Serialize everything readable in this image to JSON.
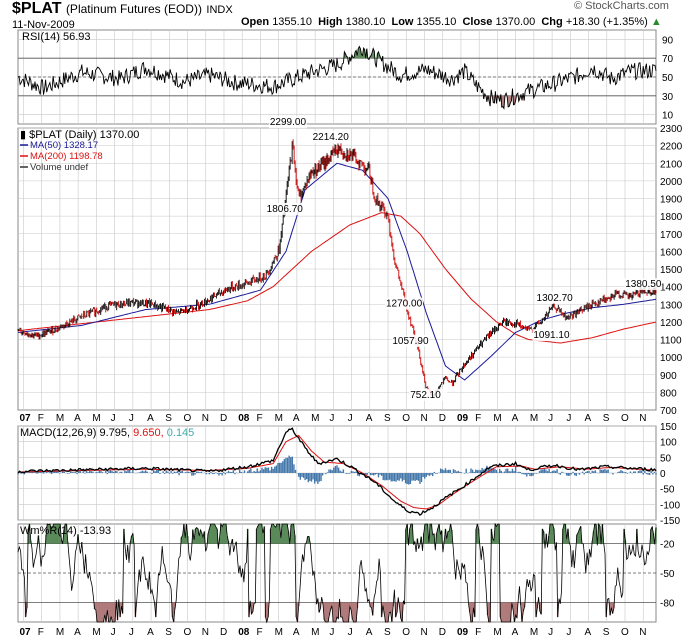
{
  "header": {
    "symbol": "$PLAT",
    "name": "(Platinum Futures (EOD))",
    "exchange": "INDX",
    "date": "11-Nov-2009",
    "open_label": "Open",
    "open": "1355.10",
    "high_label": "High",
    "high": "1380.10",
    "low_label": "Low",
    "low": "1355.10",
    "close_label": "Close",
    "close": "1370.00",
    "chg_label": "Chg",
    "chg": "+18.30 (+1.35%)",
    "watermark": "© StockCharts.com"
  },
  "colors": {
    "price": "#000000",
    "up": "#000000",
    "down": "#cc0000",
    "ma50": "#1a1a99",
    "ma200": "#dd1111",
    "macd_hist": "#4477aa",
    "signal": "#dd1111",
    "overbought_fill": "#5a8a5a",
    "oversold_fill": "#b07a7a",
    "grid": "#c8c8c8"
  },
  "chart_data": [
    {
      "panel": "rsi",
      "type": "line",
      "title": "RSI(14) 56.93",
      "ylim": [
        0,
        100
      ],
      "yticks": [
        10,
        30,
        50,
        70,
        90
      ],
      "reference_lines": [
        30,
        50,
        70
      ],
      "keypoints": [
        [
          0,
          50
        ],
        [
          4,
          38
        ],
        [
          10,
          55
        ],
        [
          16,
          48
        ],
        [
          20,
          60
        ],
        [
          26,
          45
        ],
        [
          30,
          52
        ],
        [
          34,
          44
        ],
        [
          40,
          40
        ],
        [
          46,
          55
        ],
        [
          50,
          63
        ],
        [
          52,
          72
        ],
        [
          54,
          82
        ],
        [
          56,
          70
        ],
        [
          60,
          52
        ],
        [
          64,
          58
        ],
        [
          68,
          48
        ],
        [
          70,
          56
        ],
        [
          72,
          40
        ],
        [
          74,
          28
        ],
        [
          76,
          25
        ],
        [
          80,
          35
        ],
        [
          84,
          43
        ],
        [
          88,
          52
        ],
        [
          90,
          60
        ],
        [
          93,
          48
        ],
        [
          96,
          56
        ],
        [
          100,
          57
        ]
      ]
    },
    {
      "panel": "price",
      "type": "candlestick",
      "title": "$PLAT (Daily) 1370.00",
      "legend": [
        "MA(50) 1328.17",
        "MA(200) 1198.78",
        "Volume undef"
      ],
      "ylim": [
        700,
        2300
      ],
      "yticks": [
        800,
        900,
        1000,
        1100,
        1200,
        1300,
        1400,
        1500,
        1600,
        1700,
        1800,
        1900,
        2000,
        2100,
        2200,
        2300
      ],
      "ytick_labels": [
        "800",
        "900",
        "1000",
        "1100",
        "1200",
        "1300",
        "1400",
        "1500",
        "1600",
        "1700",
        "1800",
        "1900",
        "2000",
        "2100",
        "2200",
        "2300"
      ],
      "extra_ytick_labels": [
        {
          "v": 700,
          "label": "700"
        }
      ],
      "annotations": [
        {
          "x": 42.3,
          "y": 2299,
          "label": "2299.00"
        },
        {
          "x": 49.0,
          "y": 2214.2,
          "label": "2214.20"
        },
        {
          "x": 41.8,
          "y": 1806.7,
          "label": "1806.70"
        },
        {
          "x": 60.5,
          "y": 1270,
          "label": "1270.00"
        },
        {
          "x": 61.5,
          "y": 1057.9,
          "label": "1057.90"
        },
        {
          "x": 64.3,
          "y": 752.1,
          "label": "752.10"
        },
        {
          "x": 84.1,
          "y": 1302.7,
          "label": "1302.70"
        },
        {
          "x": 83.6,
          "y": 1091.1,
          "label": "1091.10"
        },
        {
          "x": 98.0,
          "y": 1380.5,
          "label": "1380.50"
        }
      ],
      "price_keypoints": [
        [
          0,
          1150
        ],
        [
          3,
          1120
        ],
        [
          6,
          1160
        ],
        [
          10,
          1230
        ],
        [
          14,
          1290
        ],
        [
          18,
          1310
        ],
        [
          21,
          1300
        ],
        [
          25,
          1250
        ],
        [
          29,
          1310
        ],
        [
          33,
          1390
        ],
        [
          36,
          1420
        ],
        [
          39,
          1470
        ],
        [
          41,
          1620
        ],
        [
          43,
          2200
        ],
        [
          44,
          1900
        ],
        [
          46,
          2050
        ],
        [
          48,
          2100
        ],
        [
          50,
          2180
        ],
        [
          52,
          2150
        ],
        [
          55,
          2060
        ],
        [
          56,
          1900
        ],
        [
          58,
          1800
        ],
        [
          59,
          1550
        ],
        [
          61,
          1270
        ],
        [
          62,
          1150
        ],
        [
          63,
          1000
        ],
        [
          64,
          820
        ],
        [
          65,
          780
        ],
        [
          67,
          880
        ],
        [
          68,
          850
        ],
        [
          70,
          960
        ],
        [
          72,
          1050
        ],
        [
          74,
          1130
        ],
        [
          76,
          1200
        ],
        [
          78,
          1190
        ],
        [
          80,
          1150
        ],
        [
          82,
          1200
        ],
        [
          84,
          1290
        ],
        [
          86,
          1220
        ],
        [
          88,
          1260
        ],
        [
          90,
          1300
        ],
        [
          92,
          1330
        ],
        [
          94,
          1360
        ],
        [
          96,
          1340
        ],
        [
          98,
          1380
        ],
        [
          100,
          1370
        ]
      ],
      "ma50_keypoints": [
        [
          0,
          1140
        ],
        [
          10,
          1180
        ],
        [
          20,
          1270
        ],
        [
          30,
          1300
        ],
        [
          38,
          1380
        ],
        [
          42,
          1600
        ],
        [
          45,
          1950
        ],
        [
          50,
          2100
        ],
        [
          54,
          2060
        ],
        [
          58,
          1900
        ],
        [
          61,
          1600
        ],
        [
          64,
          1250
        ],
        [
          67,
          950
        ],
        [
          70,
          870
        ],
        [
          74,
          1000
        ],
        [
          78,
          1140
        ],
        [
          82,
          1210
        ],
        [
          86,
          1250
        ],
        [
          90,
          1280
        ],
        [
          95,
          1300
        ],
        [
          100,
          1328
        ]
      ],
      "ma200_keypoints": [
        [
          0,
          1150
        ],
        [
          10,
          1190
        ],
        [
          20,
          1230
        ],
        [
          30,
          1270
        ],
        [
          36,
          1320
        ],
        [
          40,
          1400
        ],
        [
          46,
          1600
        ],
        [
          52,
          1750
        ],
        [
          57,
          1820
        ],
        [
          60,
          1800
        ],
        [
          63,
          1700
        ],
        [
          67,
          1500
        ],
        [
          71,
          1330
        ],
        [
          75,
          1200
        ],
        [
          78,
          1130
        ],
        [
          80,
          1100
        ],
        [
          85,
          1080
        ],
        [
          90,
          1110
        ],
        [
          95,
          1160
        ],
        [
          100,
          1199
        ]
      ]
    },
    {
      "panel": "macd",
      "type": "line",
      "title": "MACD(12,26,9)",
      "values": {
        "macd": "9.795",
        "signal": "9.650",
        "hist": "0.145"
      },
      "ylim": [
        -150,
        150
      ],
      "yticks": [
        -150,
        -100,
        -50,
        0,
        50,
        100,
        150
      ],
      "ytick_labels": [
        "-150",
        "-100",
        "-50",
        "0",
        "50",
        "100",
        "150"
      ],
      "macd_keypoints": [
        [
          0,
          5
        ],
        [
          10,
          10
        ],
        [
          20,
          15
        ],
        [
          30,
          5
        ],
        [
          36,
          20
        ],
        [
          40,
          40
        ],
        [
          42,
          130
        ],
        [
          43,
          140
        ],
        [
          45,
          80
        ],
        [
          47,
          30
        ],
        [
          50,
          45
        ],
        [
          53,
          10
        ],
        [
          56,
          -30
        ],
        [
          59,
          -90
        ],
        [
          61,
          -120
        ],
        [
          63,
          -130
        ],
        [
          65,
          -110
        ],
        [
          67,
          -80
        ],
        [
          70,
          -40
        ],
        [
          74,
          20
        ],
        [
          78,
          30
        ],
        [
          80,
          10
        ],
        [
          84,
          25
        ],
        [
          88,
          10
        ],
        [
          92,
          20
        ],
        [
          96,
          15
        ],
        [
          100,
          10
        ]
      ],
      "signal_keypoints": [
        [
          0,
          3
        ],
        [
          10,
          8
        ],
        [
          20,
          12
        ],
        [
          30,
          8
        ],
        [
          36,
          15
        ],
        [
          40,
          30
        ],
        [
          42,
          100
        ],
        [
          44,
          120
        ],
        [
          46,
          70
        ],
        [
          48,
          35
        ],
        [
          51,
          30
        ],
        [
          54,
          0
        ],
        [
          57,
          -40
        ],
        [
          60,
          -90
        ],
        [
          62,
          -110
        ],
        [
          64,
          -115
        ],
        [
          66,
          -100
        ],
        [
          68,
          -70
        ],
        [
          71,
          -30
        ],
        [
          75,
          20
        ],
        [
          79,
          22
        ],
        [
          81,
          12
        ],
        [
          85,
          20
        ],
        [
          89,
          12
        ],
        [
          93,
          18
        ],
        [
          97,
          12
        ],
        [
          100,
          10
        ]
      ]
    },
    {
      "panel": "williams",
      "type": "line",
      "title": "Wm%R(14) -13.93",
      "ylim": [
        -100,
        0
      ],
      "yticks": [
        -80,
        -50,
        -20
      ],
      "ytick_labels": [
        "-80",
        "-50",
        "-20"
      ],
      "reference_lines": [
        -80,
        -50,
        -20
      ]
    }
  ],
  "x_axis": {
    "labels": [
      "07",
      "F",
      "M",
      "A",
      "M",
      "J",
      "J",
      "A",
      "S",
      "O",
      "N",
      "D",
      "08",
      "F",
      "M",
      "A",
      "M",
      "J",
      "J",
      "A",
      "S",
      "O",
      "N",
      "D",
      "09",
      "F",
      "M",
      "A",
      "M",
      "J",
      "J",
      "A",
      "S",
      "O",
      "N"
    ],
    "bold": [
      "07",
      "08",
      "09"
    ]
  }
}
